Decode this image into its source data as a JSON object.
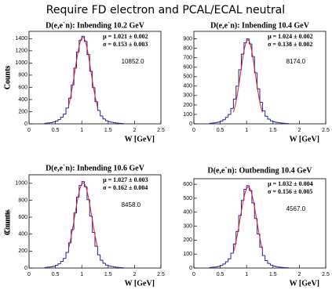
{
  "title": "Require FD electron and PCAL/ECAL neutral",
  "chart_data": [
    {
      "type": "histogram",
      "title": "D(e,e`n): Inbending 10.2 GeV",
      "xlabel": "W [GeV]",
      "ylabel": "Counts",
      "color": "#1f1fa0",
      "annotations": [
        "μ = 1.021 ± 0.002",
        "σ = 0.153 ± 0.003",
        "10852.0"
      ],
      "bins": [
        0.3,
        0.35,
        0.4,
        0.45,
        0.5,
        0.55,
        0.6,
        0.65,
        0.7,
        0.75,
        0.8,
        0.85,
        0.9,
        0.95,
        1.0,
        1.05,
        1.1,
        1.15,
        1.2,
        1.25,
        1.3,
        1.35,
        1.4,
        1.45,
        1.5,
        1.55,
        1.6,
        1.65,
        1.7,
        1.75,
        1.8
      ],
      "values": [
        10,
        15,
        20,
        30,
        45,
        70,
        110,
        160,
        260,
        420,
        640,
        916,
        1180,
        1375,
        1440,
        1355,
        1140,
        865,
        595,
        365,
        220,
        130,
        80,
        50,
        35,
        25,
        18,
        12,
        8,
        5
      ],
      "fit": {
        "mu": 1.021,
        "sigma": 0.153,
        "amplitude": 1420,
        "range": [
          0.75,
          1.3
        ],
        "color": "#e02020"
      },
      "xlim": [
        0,
        2.5
      ],
      "xticks": [
        0,
        0.5,
        1,
        1.5,
        2,
        2.5
      ],
      "ylim": [
        0,
        1520
      ],
      "yticks": [
        0,
        200,
        400,
        600,
        800,
        1000,
        1200,
        1400
      ]
    },
    {
      "type": "histogram",
      "title": "D(e,e`n): Inbending 10.4 GeV",
      "xlabel": "W [GeV]",
      "ylabel": "Counts",
      "color": "#1f1fa0",
      "annotations": [
        "μ = 1.024 ± 0.002",
        "σ = 0.138 ± 0.002",
        "8174.0"
      ],
      "bins": [
        0.3,
        0.35,
        0.4,
        0.45,
        0.5,
        0.55,
        0.6,
        0.65,
        0.7,
        0.75,
        0.8,
        0.85,
        0.9,
        0.95,
        1.0,
        1.05,
        1.1,
        1.15,
        1.2,
        1.25,
        1.3,
        1.35,
        1.4,
        1.45,
        1.5,
        1.55,
        1.6,
        1.65,
        1.7,
        1.75,
        1.8
      ],
      "values": [
        6,
        9,
        13,
        19,
        28,
        44,
        69,
        100,
        163,
        263,
        400,
        573,
        738,
        859,
        900,
        847,
        713,
        541,
        372,
        228,
        138,
        81,
        50,
        31,
        22,
        16,
        11,
        8,
        5,
        3
      ],
      "fit": {
        "mu": 1.024,
        "sigma": 0.138,
        "amplitude": 890,
        "range": [
          0.75,
          1.3
        ],
        "color": "#e02020"
      },
      "xlim": [
        0,
        2.5
      ],
      "xticks": [
        0,
        0.5,
        1,
        1.5,
        2,
        2.5
      ],
      "ylim": [
        0,
        980
      ],
      "yticks": [
        0,
        100,
        200,
        300,
        400,
        500,
        600,
        700,
        800,
        900
      ]
    },
    {
      "type": "histogram",
      "title": "D(e,e`n): Inbending 10.6 GeV",
      "xlabel": "W [GeV]",
      "ylabel": "Counts",
      "color": "#1f1fa0",
      "annotations": [
        "μ = 1.027 ± 0.003",
        "σ = 0.162 ± 0.004",
        "8458.0"
      ],
      "bins": [
        0.3,
        0.35,
        0.4,
        0.45,
        0.5,
        0.55,
        0.6,
        0.65,
        0.7,
        0.75,
        0.8,
        0.85,
        0.9,
        0.95,
        1.0,
        1.05,
        1.1,
        1.15,
        1.2,
        1.25,
        1.3,
        1.35,
        1.4,
        1.45,
        1.5,
        1.55,
        1.6,
        1.65,
        1.7,
        1.75,
        1.8
      ],
      "values": [
        7,
        11,
        14,
        21,
        32,
        50,
        78,
        113,
        184,
        297,
        453,
        649,
        835,
        974,
        1020,
        959,
        807,
        612,
        421,
        258,
        156,
        92,
        57,
        35,
        25,
        18,
        13,
        8,
        6,
        4
      ],
      "fit": {
        "mu": 1.027,
        "sigma": 0.162,
        "amplitude": 1005,
        "range": [
          0.75,
          1.3
        ],
        "color": "#e02020"
      },
      "xlim": [
        0,
        2.5
      ],
      "xticks": [
        0,
        0.5,
        1,
        1.5,
        2,
        2.5
      ],
      "ylim": [
        0,
        1100
      ],
      "yticks": [
        0,
        200,
        400,
        600,
        800,
        1000
      ]
    },
    {
      "type": "histogram",
      "title": "D(e,e`n): Outbending 10.4 GeV",
      "xlabel": "W [GeV]",
      "ylabel": "Counts",
      "color": "#1f1fa0",
      "annotations": [
        "μ = 1.032 ± 0.004",
        "σ = 0.156 ± 0.005",
        "4567.0"
      ],
      "bins": [
        0.3,
        0.35,
        0.4,
        0.45,
        0.5,
        0.55,
        0.6,
        0.65,
        0.7,
        0.75,
        0.8,
        0.85,
        0.9,
        0.95,
        1.0,
        1.05,
        1.1,
        1.15,
        1.2,
        1.25,
        1.3,
        1.35,
        1.4,
        1.45,
        1.5,
        1.55,
        1.6,
        1.65,
        1.7,
        1.75,
        1.8
      ],
      "values": [
        4,
        6,
        8,
        12,
        18,
        29,
        45,
        66,
        107,
        172,
        262,
        376,
        484,
        564,
        590,
        556,
        467,
        355,
        244,
        150,
        90,
        53,
        33,
        21,
        14,
        10,
        7,
        5,
        3,
        2
      ],
      "fit": {
        "mu": 1.032,
        "sigma": 0.156,
        "amplitude": 580,
        "range": [
          0.75,
          1.3
        ],
        "color": "#e02020"
      },
      "xlim": [
        0,
        2.5
      ],
      "xticks": [
        0,
        0.5,
        1,
        1.5,
        2,
        2.5
      ],
      "ylim": [
        0,
        640
      ],
      "yticks": [
        0,
        100,
        200,
        300,
        400,
        500,
        600
      ]
    }
  ]
}
